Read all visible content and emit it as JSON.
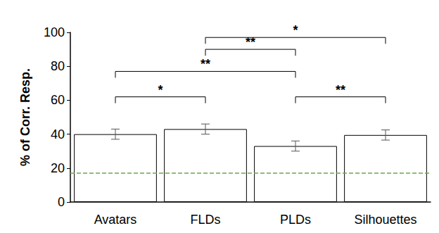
{
  "chart_data": {
    "type": "bar",
    "y_label": "% of Corr. Resp.",
    "categories": [
      "Avatars",
      "FLDs",
      "PLDs",
      "Silhouettes"
    ],
    "values": [
      40,
      43,
      33,
      39.5
    ],
    "errors": [
      3,
      3,
      3,
      3
    ],
    "color": "#ffffff",
    "chance_level": 17,
    "significance": [
      {
        "from": "Avatars",
        "to": "FLDs",
        "y": 62,
        "label": "*"
      },
      {
        "from": "PLDs",
        "to": "Silhouettes",
        "y": 62,
        "label": "**"
      },
      {
        "from": "Avatars",
        "to": "PLDs",
        "y": 77,
        "label": "**"
      },
      {
        "from": "FLDs",
        "to": "PLDs",
        "y": 90,
        "label": "**"
      },
      {
        "from": "FLDs",
        "to": "Silhouettes",
        "y": 97,
        "label": "*"
      }
    ],
    "ylim": [
      0,
      100
    ],
    "yticks": [
      0,
      20,
      40,
      60,
      80,
      100
    ],
    "grid": false
  }
}
